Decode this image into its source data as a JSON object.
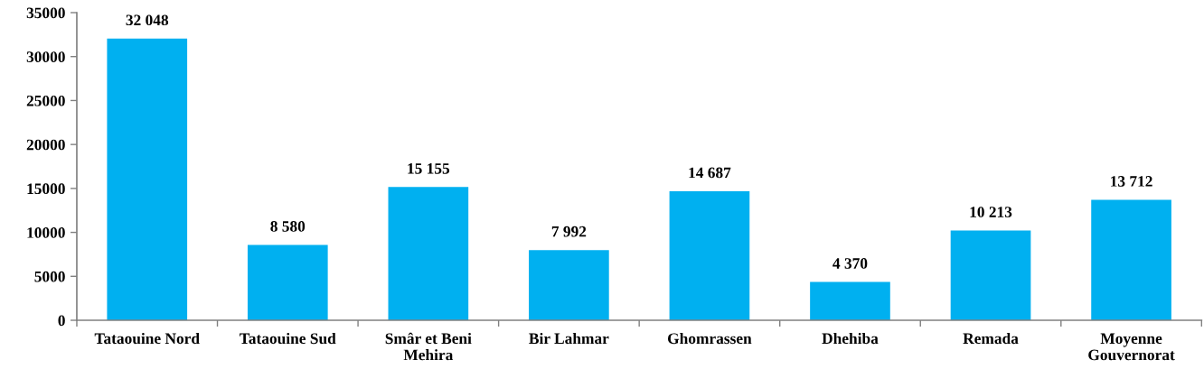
{
  "chart_data": {
    "type": "bar",
    "categories": [
      "Tataouine Nord",
      "Tataouine Sud",
      "Smâr et Beni\nMehira",
      "Bir Lahmar",
      "Ghomrassen",
      "Dhehiba",
      "Remada",
      "Moyenne\nGouvernorat"
    ],
    "values": [
      32048,
      8580,
      15155,
      7992,
      14687,
      4370,
      10213,
      13712
    ],
    "value_labels": [
      "32 048",
      "8 580",
      "15 155",
      "7 992",
      "14 687",
      "4 370",
      "10 213",
      "13 712"
    ],
    "color": "#00b0f0",
    "ylim": [
      0,
      35000
    ],
    "yticks": [
      0,
      5000,
      10000,
      15000,
      20000,
      25000,
      30000,
      35000
    ],
    "grid": false,
    "legend": false
  }
}
